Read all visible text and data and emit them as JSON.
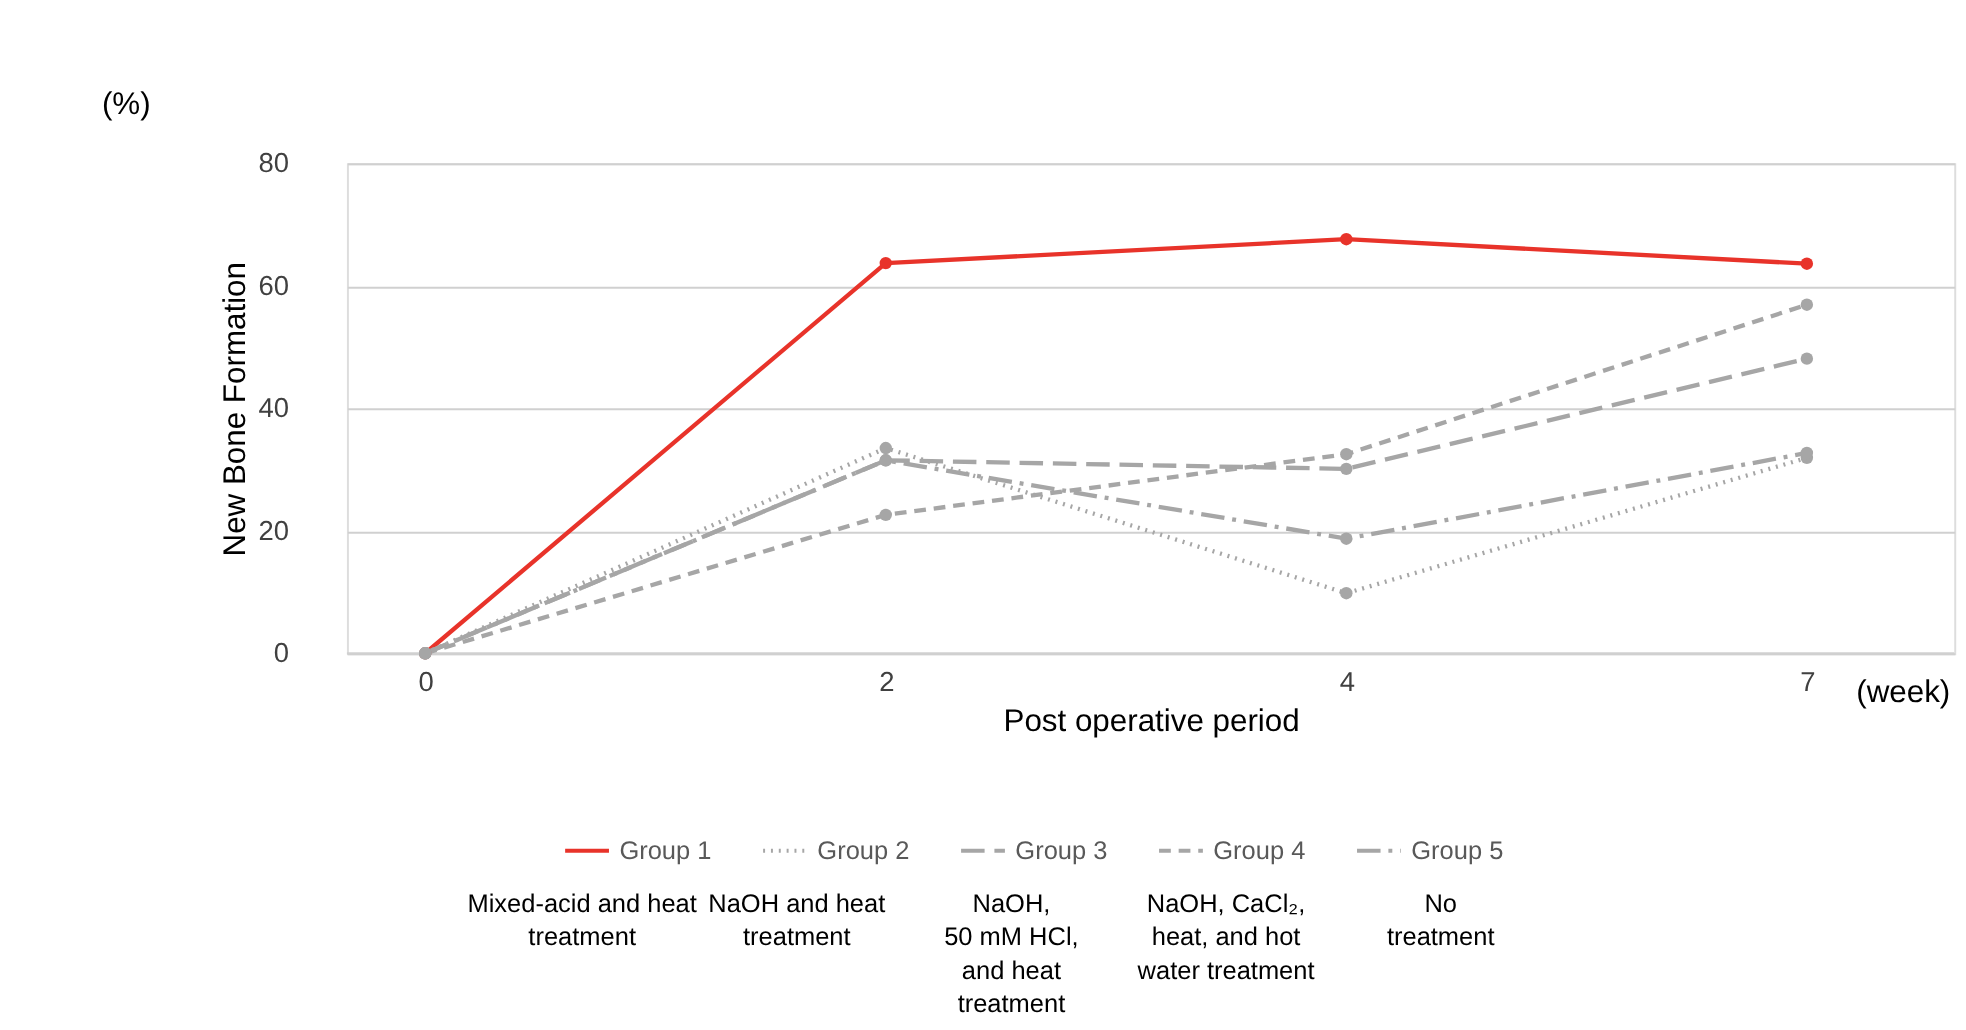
{
  "chart_data": {
    "type": "line",
    "xlabel": "Post operative period",
    "ylabel": "New Bone Formation",
    "categories": [
      "0",
      "2",
      "4",
      "7"
    ],
    "series": [
      {
        "name": "Group 1",
        "color": "#e8332a",
        "line_style": "solid",
        "values": [
          0,
          63.7,
          67.6,
          63.6
        ]
      },
      {
        "name": "Group 2",
        "color": "#a6a6a6",
        "line_style": "dotted",
        "values": [
          0,
          33.5,
          9.8,
          31.9
        ]
      },
      {
        "name": "Group 3",
        "color": "#a6a6a6",
        "line_style": "longdash",
        "values": [
          0,
          31.5,
          30.1,
          48.1
        ]
      },
      {
        "name": "Group 4",
        "color": "#a6a6a6",
        "line_style": "dashed",
        "values": [
          0,
          22.6,
          32.5,
          56.9
        ]
      },
      {
        "name": "Group 5",
        "color": "#a6a6a6",
        "line_style": "dashdot",
        "values": [
          0,
          31.5,
          18.7,
          32.7
        ]
      }
    ],
    "ylim": [
      0,
      80
    ],
    "yticks": [
      0,
      20,
      40,
      60,
      80
    ],
    "grid": "y",
    "legend": "bottom",
    "marker": "circle",
    "annotations": [
      "(%)",
      "(week)",
      "Mixed-acid and heat\ntreatment",
      "NaOH and heat\ntreatment",
      "NaOH,\n50 mM HCl,\nand heat\ntreatment",
      "NaOH, CaCl₂,\nheat, and hot\nwater treatment",
      "No\ntreatment"
    ]
  }
}
